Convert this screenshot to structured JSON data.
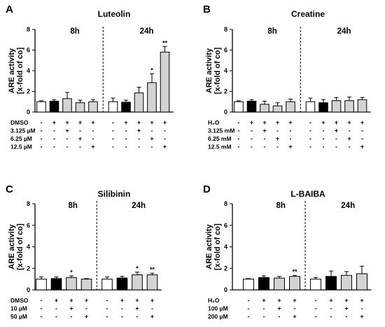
{
  "chart_data": [
    {
      "type": "bar",
      "letter": "A",
      "title": "Luteolin",
      "ylabel": "ARE activity",
      "ylabel2": "[x-fold of co]",
      "ylim": [
        0,
        8
      ],
      "yticks": [
        "0",
        "2",
        "4",
        "6",
        "8"
      ],
      "time_labels": [
        "8h",
        "24h"
      ],
      "fills": [
        "white",
        "black",
        "gray",
        "gray",
        "gray",
        "white",
        "black",
        "gray",
        "gray",
        "gray"
      ],
      "values": [
        1.0,
        1.05,
        1.3,
        0.9,
        1.0,
        1.0,
        0.95,
        1.85,
        2.85,
        5.8
      ],
      "errors": [
        0.1,
        0.15,
        0.6,
        0.25,
        0.2,
        0.35,
        0.2,
        0.55,
        0.85,
        0.55
      ],
      "significance": [
        "",
        "",
        "",
        "",
        "",
        "",
        "",
        "",
        "*",
        "**"
      ],
      "conditions": [
        {
          "label": "DMSO",
          "signs": [
            "-",
            "+",
            "+",
            "+",
            "+",
            "-",
            "+",
            "+",
            "+",
            "+"
          ]
        },
        {
          "label": "3.125 µM",
          "signs": [
            "-",
            "-",
            "+",
            "-",
            "-",
            "-",
            "-",
            "+",
            "-",
            "-"
          ]
        },
        {
          "label": "6.25 µM",
          "signs": [
            "-",
            "-",
            "-",
            "+",
            "-",
            "-",
            "-",
            "-",
            "+",
            "-"
          ]
        },
        {
          "label": "12.5 µM",
          "signs": [
            "-",
            "-",
            "-",
            "-",
            "+",
            "-",
            "-",
            "-",
            "-",
            "+"
          ]
        }
      ]
    },
    {
      "type": "bar",
      "letter": "B",
      "title": "Creatine",
      "ylabel": "ARE activity",
      "ylabel2": "[x-fold of co]",
      "ylim": [
        0,
        8
      ],
      "yticks": [
        "0",
        "2",
        "4",
        "6",
        "8"
      ],
      "time_labels": [
        "8h",
        "24h"
      ],
      "fills": [
        "white",
        "black",
        "gray",
        "gray",
        "gray",
        "white",
        "black",
        "gray",
        "gray",
        "gray"
      ],
      "values": [
        1.0,
        1.05,
        0.75,
        0.6,
        1.0,
        1.0,
        0.9,
        1.1,
        1.1,
        1.2
      ],
      "errors": [
        0.1,
        0.15,
        0.3,
        0.3,
        0.25,
        0.35,
        0.3,
        0.3,
        0.35,
        0.2
      ],
      "significance": [
        "",
        "",
        "",
        "",
        "",
        "",
        "",
        "",
        "",
        ""
      ],
      "conditions": [
        {
          "label": "H₂O",
          "signs": [
            "-",
            "+",
            "+",
            "+",
            "+",
            "-",
            "+",
            "+",
            "+",
            "+"
          ]
        },
        {
          "label": "3.125 mM",
          "signs": [
            "-",
            "-",
            "+",
            "-",
            "-",
            "-",
            "-",
            "+",
            "-",
            "-"
          ]
        },
        {
          "label": "6.25 mM",
          "signs": [
            "-",
            "-",
            "-",
            "+",
            "-",
            "-",
            "-",
            "-",
            "+",
            "-"
          ]
        },
        {
          "label": "12.5 mM",
          "signs": [
            "-",
            "-",
            "-",
            "-",
            "+",
            "-",
            "-",
            "-",
            "-",
            "+"
          ]
        }
      ]
    },
    {
      "type": "bar",
      "letter": "C",
      "title": "Silibinin",
      "ylabel": "ARE activity",
      "ylabel2": "[x-fold of co]",
      "ylim": [
        0,
        8
      ],
      "yticks": [
        "0",
        "2",
        "4",
        "6",
        "8"
      ],
      "time_labels": [
        "8h",
        "24h"
      ],
      "fills": [
        "white",
        "black",
        "gray",
        "gray",
        "white",
        "black",
        "gray",
        "gray"
      ],
      "values": [
        1.0,
        1.05,
        1.15,
        1.0,
        1.0,
        1.1,
        1.4,
        1.4
      ],
      "errors": [
        0.2,
        0.15,
        0.15,
        0.05,
        0.2,
        0.15,
        0.25,
        0.15
      ],
      "significance": [
        "",
        "",
        "*",
        "",
        "",
        "",
        "*",
        "**"
      ],
      "conditions": [
        {
          "label": "DMSO",
          "signs": [
            "-",
            "+",
            "+",
            "+",
            "-",
            "+",
            "+",
            "+"
          ]
        },
        {
          "label": "10 µM",
          "signs": [
            "-",
            "-",
            "+",
            "-",
            "-",
            "-",
            "+",
            "-"
          ]
        },
        {
          "label": "50 µM",
          "signs": [
            "-",
            "-",
            "-",
            "+",
            "-",
            "-",
            "-",
            "+"
          ]
        }
      ]
    },
    {
      "type": "bar",
      "letter": "D",
      "title": "L-BAIBA",
      "ylabel": "ARE activity",
      "ylabel2": "[x-fold of co]",
      "ylim": [
        0,
        8
      ],
      "yticks": [
        "0",
        "2",
        "4",
        "6",
        "8"
      ],
      "time_labels": [
        "8h",
        "24h"
      ],
      "fills": [
        "white",
        "black",
        "gray",
        "gray",
        "white",
        "black",
        "gray",
        "gray"
      ],
      "values": [
        1.0,
        1.15,
        1.1,
        1.25,
        1.0,
        1.25,
        1.35,
        1.5
      ],
      "errors": [
        0.05,
        0.15,
        0.15,
        0.1,
        0.15,
        0.5,
        0.35,
        0.7
      ],
      "significance": [
        "",
        "",
        "",
        "**",
        "",
        "",
        "",
        ""
      ],
      "conditions": [
        {
          "label": "H₂O",
          "signs": [
            "-",
            "+",
            "+",
            "+",
            "-",
            "+",
            "+",
            "+"
          ]
        },
        {
          "label": "100 µM",
          "signs": [
            "-",
            "-",
            "+",
            "-",
            "-",
            "-",
            "+",
            "-"
          ]
        },
        {
          "label": "200 µM",
          "signs": [
            "-",
            "-",
            "-",
            "+",
            "-",
            "-",
            "-",
            "+"
          ]
        }
      ]
    }
  ]
}
